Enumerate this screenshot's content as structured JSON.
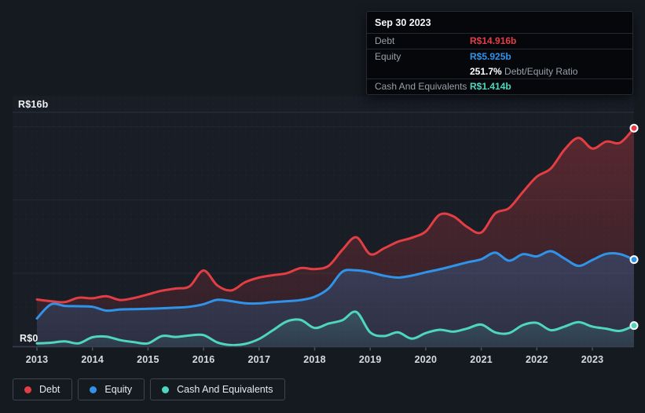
{
  "tooltip": {
    "date": "Sep 30 2023",
    "debt_label": "Debt",
    "debt_value": "R$14.916b",
    "equity_label": "Equity",
    "equity_value": "R$5.925b",
    "ratio_value": "251.7%",
    "ratio_label": "Debt/Equity Ratio",
    "cash_label": "Cash And Equivalents",
    "cash_value": "R$1.414b"
  },
  "legend": {
    "items": [
      {
        "label": "Debt",
        "color": "#e33e44"
      },
      {
        "label": "Equity",
        "color": "#3093e8"
      },
      {
        "label": "Cash And Equivalents",
        "color": "#4ed6bf"
      }
    ]
  },
  "chart_data": {
    "type": "area",
    "currency_unit": "R$ billions",
    "y_axis": {
      "top_label": "R$16b",
      "zero_label": "R$0",
      "max": 16,
      "min": 0,
      "gridlines": [
        16,
        15,
        10,
        5
      ]
    },
    "x_ticks": [
      {
        "value": 2013,
        "label": "2013"
      },
      {
        "value": 2014,
        "label": "2014"
      },
      {
        "value": 2015,
        "label": "2015"
      },
      {
        "value": 2016,
        "label": "2016"
      },
      {
        "value": 2017,
        "label": "2017"
      },
      {
        "value": 2018,
        "label": "2018"
      },
      {
        "value": 2019,
        "label": "2019"
      },
      {
        "value": 2020,
        "label": "2020"
      },
      {
        "value": 2021,
        "label": "2021"
      },
      {
        "value": 2022,
        "label": "2022"
      },
      {
        "value": 2023,
        "label": "2023"
      }
    ],
    "x": [
      2013,
      2013.25,
      2013.5,
      2013.75,
      2014,
      2014.25,
      2014.5,
      2014.75,
      2015,
      2015.25,
      2015.5,
      2015.75,
      2016,
      2016.25,
      2016.5,
      2016.75,
      2017,
      2017.25,
      2017.5,
      2017.75,
      2018,
      2018.25,
      2018.5,
      2018.75,
      2019,
      2019.25,
      2019.5,
      2019.75,
      2020,
      2020.25,
      2020.5,
      2020.75,
      2021,
      2021.25,
      2021.5,
      2021.75,
      2022,
      2022.25,
      2022.5,
      2022.75,
      2023,
      2023.25,
      2023.5,
      2023.75
    ],
    "series": [
      {
        "name": "Debt",
        "color": "#e33e44",
        "values": [
          3.2,
          3.08,
          3.02,
          3.32,
          3.28,
          3.42,
          3.16,
          3.3,
          3.55,
          3.8,
          3.95,
          4.1,
          5.18,
          4.15,
          3.82,
          4.38,
          4.7,
          4.86,
          5.0,
          5.35,
          5.28,
          5.5,
          6.6,
          7.45,
          6.3,
          6.7,
          7.15,
          7.42,
          7.85,
          9.0,
          8.88,
          8.15,
          7.78,
          9.08,
          9.45,
          10.55,
          11.6,
          12.15,
          13.45,
          14.25,
          13.52,
          14.0,
          13.92,
          14.916
        ]
      },
      {
        "name": "Equity",
        "color": "#3093e8",
        "values": [
          1.9,
          2.86,
          2.76,
          2.74,
          2.7,
          2.44,
          2.52,
          2.54,
          2.56,
          2.6,
          2.64,
          2.7,
          2.88,
          3.18,
          3.08,
          2.94,
          2.93,
          3.02,
          3.08,
          3.16,
          3.38,
          3.95,
          5.1,
          5.19,
          5.06,
          4.82,
          4.7,
          4.83,
          5.06,
          5.26,
          5.5,
          5.74,
          5.95,
          6.4,
          5.85,
          6.3,
          6.15,
          6.5,
          6.0,
          5.5,
          5.9,
          6.32,
          6.3,
          5.925
        ]
      },
      {
        "name": "Cash And Equivalents",
        "color": "#4ed6bf",
        "values": [
          0.2,
          0.24,
          0.34,
          0.2,
          0.62,
          0.66,
          0.42,
          0.28,
          0.2,
          0.7,
          0.64,
          0.74,
          0.76,
          0.26,
          0.08,
          0.16,
          0.5,
          1.1,
          1.7,
          1.8,
          1.25,
          1.55,
          1.78,
          2.35,
          0.95,
          0.7,
          0.95,
          0.52,
          0.9,
          1.13,
          1.0,
          1.22,
          1.48,
          0.95,
          0.9,
          1.45,
          1.6,
          1.1,
          1.35,
          1.65,
          1.35,
          1.2,
          1.05,
          1.414
        ]
      }
    ],
    "last_point": {
      "date": "Sep 30 2023",
      "debt": 14.916,
      "equity": 5.925,
      "cash": 1.414,
      "debt_equity_ratio_pct": 251.7
    }
  }
}
